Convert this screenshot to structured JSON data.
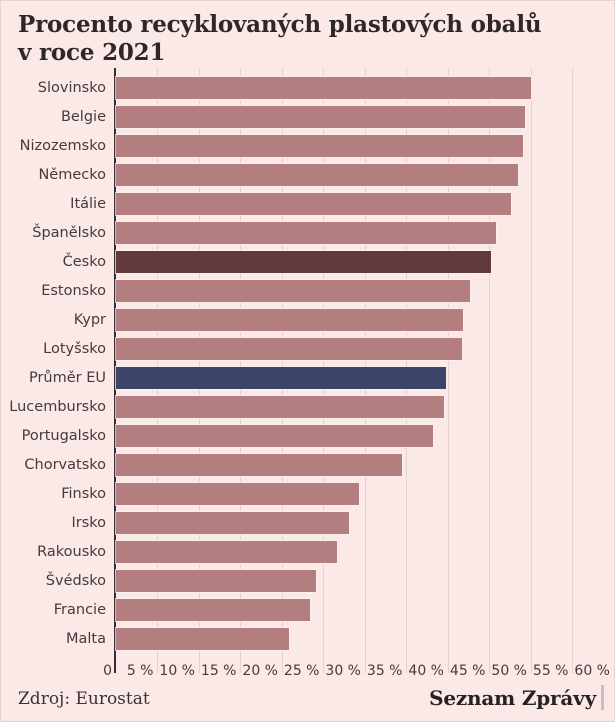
{
  "title": {
    "lines": [
      "Procento recyklovaných plastových obalů",
      "v roce 2021"
    ]
  },
  "source": {
    "label": "Zdroj: Eurostat"
  },
  "brand": {
    "name": "Seznam Zprávy"
  },
  "chart_data": {
    "type": "bar",
    "orientation": "horizontal",
    "title": "Procento recyklovaných plastových obalů v roce 2021",
    "unit": "%",
    "xlim": [
      0,
      60
    ],
    "grid": true,
    "legend": false,
    "x_ticks": [
      {
        "value": 0,
        "label": "0"
      },
      {
        "value": 5,
        "label": "5 %"
      },
      {
        "value": 10,
        "label": "10 %"
      },
      {
        "value": 15,
        "label": "15 %"
      },
      {
        "value": 20,
        "label": "20 %"
      },
      {
        "value": 25,
        "label": "25 %"
      },
      {
        "value": 30,
        "label": "30 %"
      },
      {
        "value": 35,
        "label": "35 %"
      },
      {
        "value": 40,
        "label": "40 %"
      },
      {
        "value": 45,
        "label": "45 %"
      },
      {
        "value": 50,
        "label": "50 %"
      },
      {
        "value": 55,
        "label": "55 %"
      },
      {
        "value": 60,
        "label": "60 %"
      }
    ],
    "items": [
      {
        "label": "Slovinsko",
        "value": 50.0
      },
      {
        "label": "Belgie",
        "value": 49.3
      },
      {
        "label": "Nizozemsko",
        "value": 49.0
      },
      {
        "label": "Německo",
        "value": 48.4
      },
      {
        "label": "Itálie",
        "value": 47.6
      },
      {
        "label": "Španělsko",
        "value": 45.8
      },
      {
        "label": "Česko",
        "value": 45.2,
        "highlight": "country"
      },
      {
        "label": "Estonsko",
        "value": 42.7
      },
      {
        "label": "Kypr",
        "value": 41.8
      },
      {
        "label": "Lotyšsko",
        "value": 41.7
      },
      {
        "label": "Průměr EU",
        "value": 39.7,
        "highlight": "eu"
      },
      {
        "label": "Lucembursko",
        "value": 39.5
      },
      {
        "label": "Portugalsko",
        "value": 38.2
      },
      {
        "label": "Chorvatsko",
        "value": 34.4
      },
      {
        "label": "Finsko",
        "value": 29.3
      },
      {
        "label": "Irsko",
        "value": 28.1
      },
      {
        "label": "Rakousko",
        "value": 26.6
      },
      {
        "label": "Švédsko",
        "value": 24.1
      },
      {
        "label": "Francie",
        "value": 23.4
      },
      {
        "label": "Malta",
        "value": 20.8
      }
    ],
    "colors": {
      "background": "#fae9e7",
      "bar": "#b47d7f",
      "highlight_country": "#603a3c",
      "highlight_eu": "#3d4468",
      "gridline": "#e5d1cf",
      "axis_line": "#352d2f"
    }
  }
}
